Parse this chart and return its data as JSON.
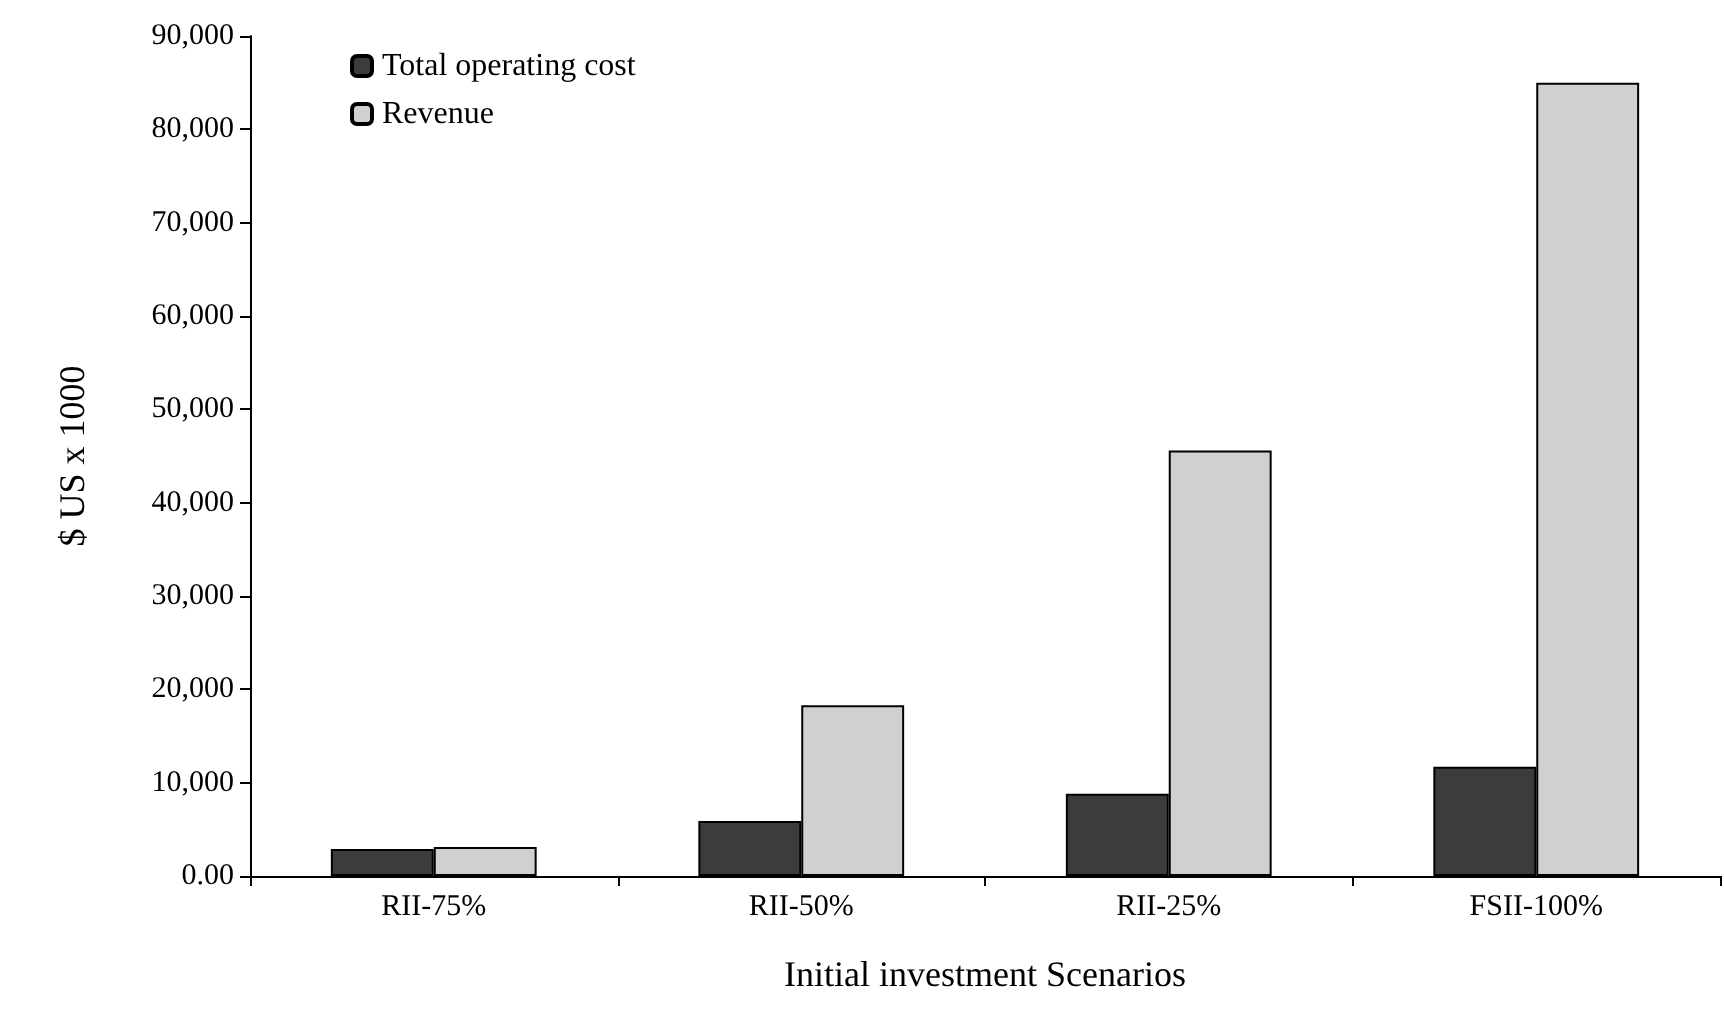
{
  "chart_data": {
    "type": "bar",
    "xlabel": "Initial investment Scenarios",
    "ylabel": "$ US x 1000",
    "categories": [
      "RII-75%",
      "RII-50%",
      "RII-25%",
      "FSII-100%"
    ],
    "series": [
      {
        "name": "Total operating cost",
        "color": "#3c3c3c",
        "values": [
          2900,
          5900,
          8800,
          11700
        ]
      },
      {
        "name": "Revenue",
        "color": "#d0d0d0",
        "values": [
          3100,
          18300,
          45600,
          85000
        ]
      }
    ],
    "ylim": [
      0,
      90000
    ],
    "yticks": [
      {
        "value": 0,
        "label": "0.00"
      },
      {
        "value": 10000,
        "label": "10,000"
      },
      {
        "value": 20000,
        "label": "20,000"
      },
      {
        "value": 30000,
        "label": "30,000"
      },
      {
        "value": 40000,
        "label": "40,000"
      },
      {
        "value": 50000,
        "label": "50,000"
      },
      {
        "value": 60000,
        "label": "60,000"
      },
      {
        "value": 70000,
        "label": "70,000"
      },
      {
        "value": 80000,
        "label": "80,000"
      },
      {
        "value": 90000,
        "label": "90,000"
      }
    ],
    "grid": false,
    "legend": "top left"
  }
}
